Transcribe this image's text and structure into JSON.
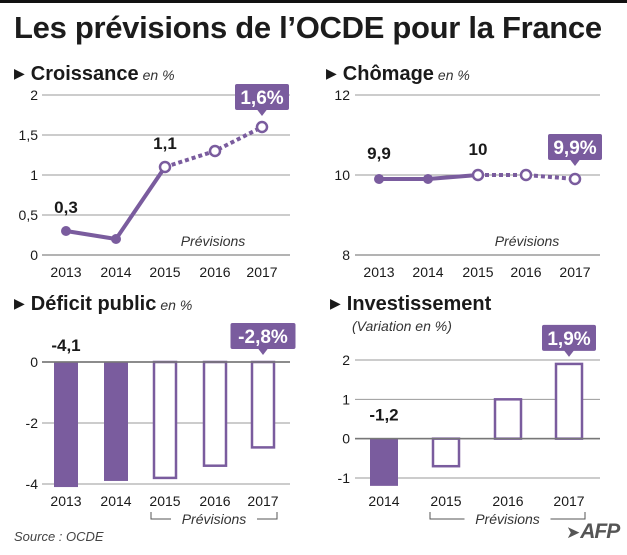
{
  "title": "Les prévisions de l’OCDE pour la France",
  "source": "Source : OCDE",
  "logo": "AFP",
  "colors": {
    "purple": "#7a5c9e",
    "dark": "#1a1a1a",
    "grey": "#888888"
  },
  "chart_data": [
    {
      "id": "croissance",
      "type": "line",
      "title": "Croissance",
      "unit": "en %",
      "x": [
        "2013",
        "2014",
        "2015",
        "2016",
        "2017"
      ],
      "values": [
        0.3,
        0.2,
        1.1,
        1.3,
        1.6
      ],
      "forecast_from_index": 2,
      "ylim": [
        0,
        2
      ],
      "yticks": [
        0,
        0.5,
        1,
        1.5,
        2
      ],
      "ytick_labels": [
        "0",
        "0,5",
        "1",
        "1,5",
        "2"
      ],
      "data_labels": [
        {
          "index": 0,
          "text": "0,3"
        },
        {
          "index": 2,
          "text": "1,1"
        },
        {
          "index": 4,
          "text": "1,6%",
          "highlight": true
        }
      ],
      "annotation": "Prévisions"
    },
    {
      "id": "chomage",
      "type": "line",
      "title": "Chômage",
      "unit": "en %",
      "x": [
        "2013",
        "2014",
        "2015",
        "2016",
        "2017"
      ],
      "values": [
        9.9,
        9.9,
        10.0,
        10.0,
        9.9
      ],
      "forecast_from_index": 2,
      "ylim": [
        8,
        12
      ],
      "yticks": [
        8,
        10,
        12
      ],
      "ytick_labels": [
        "8",
        "10",
        "12"
      ],
      "data_labels": [
        {
          "index": 0,
          "text": "9,9"
        },
        {
          "index": 2,
          "text": "10"
        },
        {
          "index": 4,
          "text": "9,9%",
          "highlight": true
        }
      ],
      "annotation": "Prévisions"
    },
    {
      "id": "deficit",
      "type": "bar",
      "title": "Déficit public",
      "unit": "en %",
      "categories": [
        "2013",
        "2014",
        "2015",
        "2016",
        "2017"
      ],
      "values": [
        -4.1,
        -3.9,
        -3.8,
        -3.4,
        -2.8
      ],
      "forecast_from_index": 2,
      "ylim": [
        -4,
        0
      ],
      "yticks": [
        0,
        -2,
        -4
      ],
      "ytick_labels": [
        "0",
        "-2",
        "-4"
      ],
      "data_labels": [
        {
          "index": 0,
          "text": "-4,1"
        },
        {
          "index": 4,
          "text": "-2,8%",
          "highlight": true
        }
      ],
      "bracket": "Prévisions"
    },
    {
      "id": "investissement",
      "type": "bar",
      "title": "Investissement",
      "subtitle": "(Variation en %)",
      "categories": [
        "2014",
        "2015",
        "2016",
        "2017"
      ],
      "values": [
        -1.2,
        -0.7,
        1.0,
        1.9
      ],
      "forecast_from_index": 1,
      "ylim": [
        -1,
        2
      ],
      "yticks": [
        2,
        1,
        0,
        -1
      ],
      "ytick_labels": [
        "2",
        "1",
        "0",
        "-1"
      ],
      "data_labels": [
        {
          "index": 0,
          "text": "-1,2"
        },
        {
          "index": 3,
          "text": "1,9%",
          "highlight": true
        }
      ],
      "bracket": "Prévisions"
    }
  ]
}
